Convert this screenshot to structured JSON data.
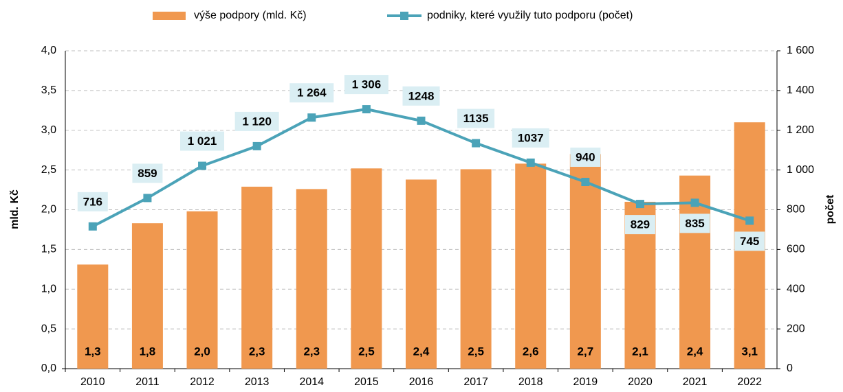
{
  "chart_data": {
    "type": "bar-line",
    "categories": [
      "2010",
      "2011",
      "2012",
      "2013",
      "2014",
      "2015",
      "2016",
      "2017",
      "2018",
      "2019",
      "2020",
      "2021",
      "2022"
    ],
    "series": [
      {
        "name": "výše podpory (mld. Kč)",
        "color": "#f0984f",
        "type": "bar",
        "values": [
          1.31,
          1.83,
          1.98,
          2.29,
          2.26,
          2.52,
          2.38,
          2.51,
          2.58,
          2.7,
          2.1,
          2.43,
          3.1
        ],
        "value_labels": [
          "1,3",
          "1,8",
          "2,0",
          "2,3",
          "2,3",
          "2,5",
          "2,4",
          "2,5",
          "2,6",
          "2,7",
          "2,1",
          "2,4",
          "3,1"
        ]
      },
      {
        "name": "podniky, které využily tuto podporu (počet)",
        "color": "#4ba3b8",
        "type": "line",
        "axis": "y2",
        "values": [
          716,
          859,
          1021,
          1120,
          1264,
          1306,
          1248,
          1135,
          1037,
          940,
          829,
          835,
          745
        ],
        "value_labels": [
          "716",
          "859",
          "1 021",
          "1 120",
          "1 264",
          "1 306",
          "1248",
          "1135",
          "1037",
          "940",
          "829",
          "835",
          "745"
        ]
      }
    ],
    "y_label": "mld. Kč",
    "y2_label": "počet",
    "ylim": [
      0,
      4
    ],
    "yticks": [
      {
        "value": 0,
        "label": "0,0"
      },
      {
        "value": 0.5,
        "label": "0,5"
      },
      {
        "value": 1,
        "label": "1,0"
      },
      {
        "value": 1.5,
        "label": "1,5"
      },
      {
        "value": 2,
        "label": "2,0"
      },
      {
        "value": 2.5,
        "label": "2,5"
      },
      {
        "value": 3,
        "label": "3,0"
      },
      {
        "value": 3.5,
        "label": "3,5"
      },
      {
        "value": 4,
        "label": "4,0"
      }
    ],
    "y2lim": [
      0,
      1600
    ],
    "y2ticks": [
      0,
      200,
      400,
      600,
      800,
      {
        "value": 1000,
        "label": "1 000"
      },
      {
        "value": 1200,
        "label": "1 200"
      },
      {
        "value": 1400,
        "label": "1 400"
      },
      {
        "value": 1600,
        "label": "1 600"
      }
    ],
    "grid": true
  }
}
